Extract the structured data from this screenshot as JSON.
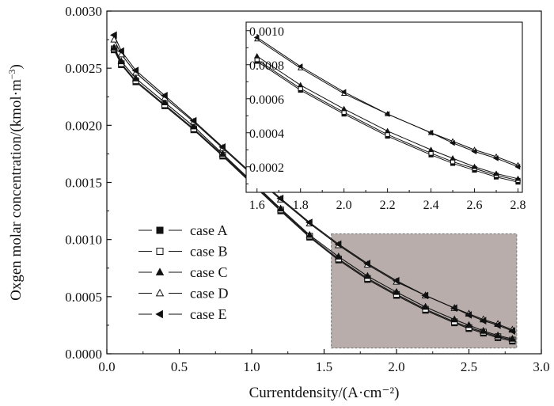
{
  "chart_data": {
    "type": "line",
    "xlabel": "Currentdensity/(A·cm⁻²)",
    "ylabel_main": "Oxgen molar concentration/(kmol·m",
    "ylabel_sup": "−3",
    "ylabel_close": ")",
    "xlim": [
      0.0,
      3.0
    ],
    "ylim": [
      0.0,
      0.003
    ],
    "xticks": [
      "0.0",
      "0.5",
      "1.0",
      "1.5",
      "2.0",
      "2.5",
      "3.0"
    ],
    "yticks": [
      "0.0000",
      "0.0005",
      "0.0010",
      "0.0015",
      "0.0020",
      "0.0025",
      "0.0030"
    ],
    "x": [
      0.05,
      0.1,
      0.2,
      0.4,
      0.6,
      0.8,
      1.0,
      1.2,
      1.4,
      1.6,
      1.8,
      2.0,
      2.2,
      2.4,
      2.5,
      2.6,
      2.7,
      2.8
    ],
    "series": [
      {
        "name": "case A",
        "marker": "square-filled",
        "values": [
          0.00266,
          0.00253,
          0.00238,
          0.00217,
          0.00196,
          0.00173,
          0.00149,
          0.00125,
          0.00102,
          0.00082,
          0.00065,
          0.00051,
          0.00038,
          0.00027,
          0.00022,
          0.00018,
          0.00014,
          0.00011
        ]
      },
      {
        "name": "case B",
        "marker": "square-open",
        "values": [
          0.00267,
          0.00254,
          0.00239,
          0.00218,
          0.00197,
          0.00174,
          0.0015,
          0.00126,
          0.00103,
          0.00083,
          0.00066,
          0.00052,
          0.00039,
          0.00028,
          0.00023,
          0.00019,
          0.00015,
          0.00012
        ]
      },
      {
        "name": "case C",
        "marker": "triangle-up-filled",
        "values": [
          0.00268,
          0.00256,
          0.00241,
          0.0022,
          0.00199,
          0.00175,
          0.00151,
          0.00127,
          0.00104,
          0.00085,
          0.00068,
          0.00054,
          0.00041,
          0.0003,
          0.00025,
          0.0002,
          0.00016,
          0.00013
        ]
      },
      {
        "name": "case D",
        "marker": "triangle-up-open",
        "values": [
          0.00275,
          0.00262,
          0.00246,
          0.00224,
          0.00203,
          0.0018,
          0.00157,
          0.00135,
          0.00114,
          0.00095,
          0.00078,
          0.00063,
          0.00051,
          0.0004,
          0.00035,
          0.0003,
          0.00026,
          0.00021
        ]
      },
      {
        "name": "case E",
        "marker": "triangle-left-filled",
        "values": [
          0.00279,
          0.00265,
          0.00248,
          0.00226,
          0.00204,
          0.00181,
          0.00158,
          0.00136,
          0.00115,
          0.00096,
          0.00079,
          0.00064,
          0.00051,
          0.0004,
          0.00034,
          0.00029,
          0.00025,
          0.0002
        ]
      }
    ],
    "highlight_region": {
      "x": [
        1.55,
        2.83
      ],
      "y": [
        5e-05,
        0.00105
      ],
      "color": "#b8adaa"
    },
    "inset": {
      "xlim": [
        1.55,
        2.82
      ],
      "ylim": [
        5e-05,
        0.00105
      ],
      "xticks": [
        "1.6",
        "1.8",
        "2.0",
        "2.2",
        "2.4",
        "2.6",
        "2.8"
      ],
      "yticks": [
        "0.0002",
        "0.0004",
        "0.0006",
        "0.0008",
        "0.0010"
      ]
    },
    "legend_position": "center-left",
    "grid": false
  }
}
